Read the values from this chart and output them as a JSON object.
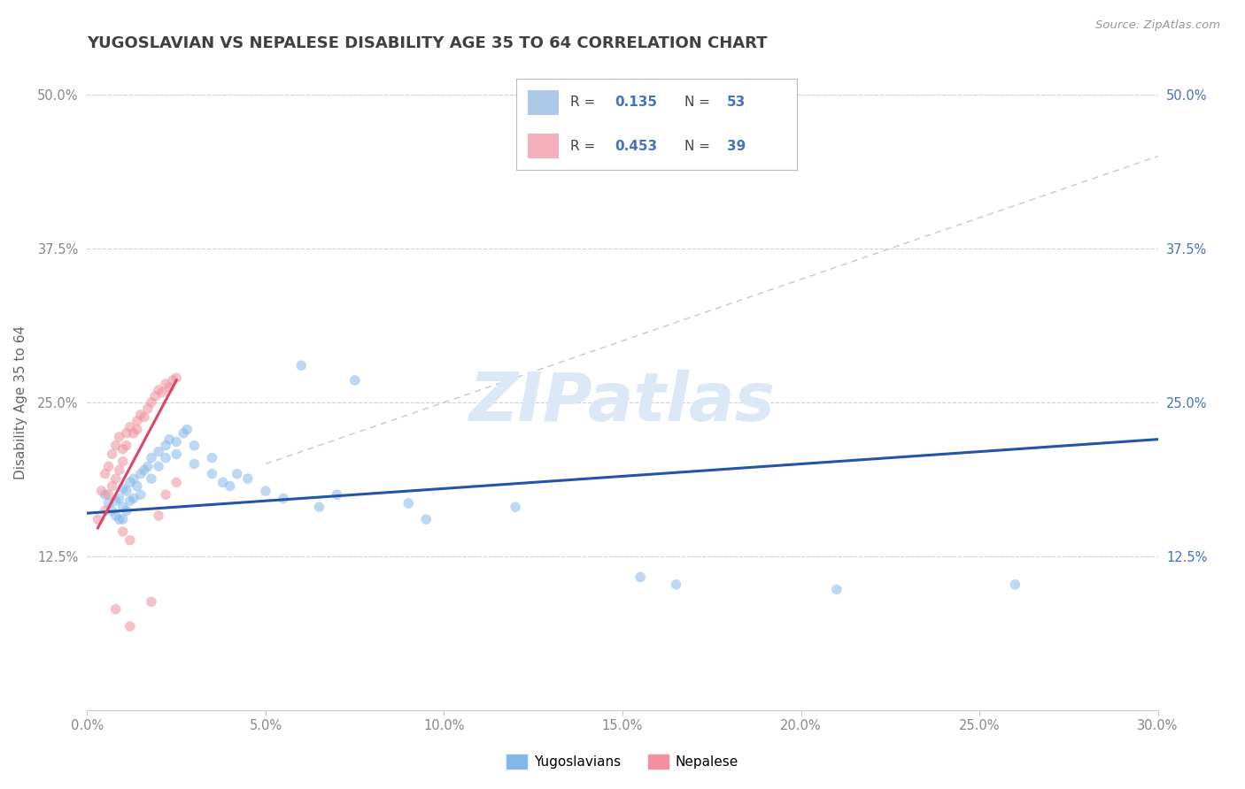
{
  "title": "YUGOSLAVIAN VS NEPALESE DISABILITY AGE 35 TO 64 CORRELATION CHART",
  "source": "Source: ZipAtlas.com",
  "ylabel": "Disability Age 35 to 64",
  "xlim": [
    0.0,
    0.3
  ],
  "ylim": [
    0.0,
    0.5
  ],
  "xticks": [
    0.0,
    0.05,
    0.1,
    0.15,
    0.2,
    0.25,
    0.3
  ],
  "yticks": [
    0.0,
    0.125,
    0.25,
    0.375,
    0.5
  ],
  "xtick_labels": [
    "0.0%",
    "5.0%",
    "10.0%",
    "15.0%",
    "20.0%",
    "25.0%",
    "30.0%"
  ],
  "ytick_labels_left": [
    "",
    "12.5%",
    "25.0%",
    "37.5%",
    "50.0%"
  ],
  "ytick_labels_right": [
    "",
    "12.5%",
    "25.0%",
    "37.5%",
    "50.0%"
  ],
  "title_color": "#404040",
  "title_fontsize": 13,
  "axis_label_color": "#666666",
  "tick_label_color_left": "#888888",
  "tick_label_color_right": "#4472c4",
  "grid_color": "#d0d0d0",
  "watermark_text": "ZIPatlas",
  "watermark_color": "#dce8f5",
  "blue_scatter": [
    [
      0.005,
      0.175
    ],
    [
      0.006,
      0.168
    ],
    [
      0.007,
      0.162
    ],
    [
      0.008,
      0.17
    ],
    [
      0.008,
      0.158
    ],
    [
      0.009,
      0.172
    ],
    [
      0.009,
      0.155
    ],
    [
      0.01,
      0.18
    ],
    [
      0.01,
      0.165
    ],
    [
      0.01,
      0.155
    ],
    [
      0.011,
      0.178
    ],
    [
      0.011,
      0.162
    ],
    [
      0.012,
      0.185
    ],
    [
      0.012,
      0.17
    ],
    [
      0.013,
      0.188
    ],
    [
      0.013,
      0.172
    ],
    [
      0.014,
      0.182
    ],
    [
      0.015,
      0.192
    ],
    [
      0.015,
      0.175
    ],
    [
      0.016,
      0.195
    ],
    [
      0.017,
      0.198
    ],
    [
      0.018,
      0.205
    ],
    [
      0.018,
      0.188
    ],
    [
      0.02,
      0.21
    ],
    [
      0.02,
      0.198
    ],
    [
      0.022,
      0.215
    ],
    [
      0.022,
      0.205
    ],
    [
      0.023,
      0.22
    ],
    [
      0.025,
      0.218
    ],
    [
      0.025,
      0.208
    ],
    [
      0.027,
      0.225
    ],
    [
      0.028,
      0.228
    ],
    [
      0.03,
      0.215
    ],
    [
      0.03,
      0.2
    ],
    [
      0.035,
      0.205
    ],
    [
      0.035,
      0.192
    ],
    [
      0.038,
      0.185
    ],
    [
      0.04,
      0.182
    ],
    [
      0.042,
      0.192
    ],
    [
      0.045,
      0.188
    ],
    [
      0.05,
      0.178
    ],
    [
      0.055,
      0.172
    ],
    [
      0.06,
      0.28
    ],
    [
      0.065,
      0.165
    ],
    [
      0.07,
      0.175
    ],
    [
      0.075,
      0.268
    ],
    [
      0.09,
      0.168
    ],
    [
      0.095,
      0.155
    ],
    [
      0.12,
      0.165
    ],
    [
      0.155,
      0.108
    ],
    [
      0.165,
      0.102
    ],
    [
      0.21,
      0.098
    ],
    [
      0.26,
      0.102
    ]
  ],
  "pink_scatter": [
    [
      0.003,
      0.155
    ],
    [
      0.004,
      0.178
    ],
    [
      0.005,
      0.162
    ],
    [
      0.005,
      0.192
    ],
    [
      0.006,
      0.175
    ],
    [
      0.006,
      0.198
    ],
    [
      0.007,
      0.182
    ],
    [
      0.007,
      0.208
    ],
    [
      0.008,
      0.188
    ],
    [
      0.008,
      0.215
    ],
    [
      0.009,
      0.195
    ],
    [
      0.009,
      0.222
    ],
    [
      0.01,
      0.202
    ],
    [
      0.01,
      0.212
    ],
    [
      0.011,
      0.225
    ],
    [
      0.011,
      0.215
    ],
    [
      0.012,
      0.23
    ],
    [
      0.013,
      0.225
    ],
    [
      0.014,
      0.235
    ],
    [
      0.014,
      0.228
    ],
    [
      0.015,
      0.24
    ],
    [
      0.016,
      0.238
    ],
    [
      0.017,
      0.245
    ],
    [
      0.018,
      0.25
    ],
    [
      0.019,
      0.255
    ],
    [
      0.02,
      0.26
    ],
    [
      0.021,
      0.258
    ],
    [
      0.022,
      0.265
    ],
    [
      0.023,
      0.262
    ],
    [
      0.024,
      0.268
    ],
    [
      0.025,
      0.27
    ],
    [
      0.008,
      0.082
    ],
    [
      0.012,
      0.068
    ],
    [
      0.018,
      0.088
    ],
    [
      0.02,
      0.158
    ],
    [
      0.022,
      0.175
    ],
    [
      0.025,
      0.185
    ],
    [
      0.01,
      0.145
    ],
    [
      0.012,
      0.138
    ]
  ],
  "blue_line": {
    "x0": 0.0,
    "x1": 0.3,
    "y0": 0.16,
    "y1": 0.22
  },
  "pink_line": {
    "x0": 0.003,
    "x1": 0.025,
    "y0": 0.148,
    "y1": 0.268
  },
  "ref_line": {
    "x0": 0.05,
    "x1": 0.3,
    "y0": 0.2,
    "y1": 0.45
  },
  "dot_size": 70,
  "dot_alpha": 0.55,
  "blue_dot_color": "#85b8e8",
  "pink_dot_color": "#f090a0",
  "blue_line_color": "#2255aa",
  "pink_line_color": "#dd4466",
  "ref_line_color": "#c8c8c8",
  "background_color": "#ffffff",
  "legend": {
    "blue_color": "#aec8e8",
    "pink_color": "#f4b0bc",
    "R_blue": "0.135",
    "N_blue": "53",
    "R_pink": "0.453",
    "N_pink": "39",
    "value_color": "#4472c4",
    "label_color": "#444444"
  },
  "bottom_legend": [
    {
      "label": "Yugoslavians",
      "color": "#85b8e8"
    },
    {
      "label": "Nepalese",
      "color": "#f090a0"
    }
  ]
}
